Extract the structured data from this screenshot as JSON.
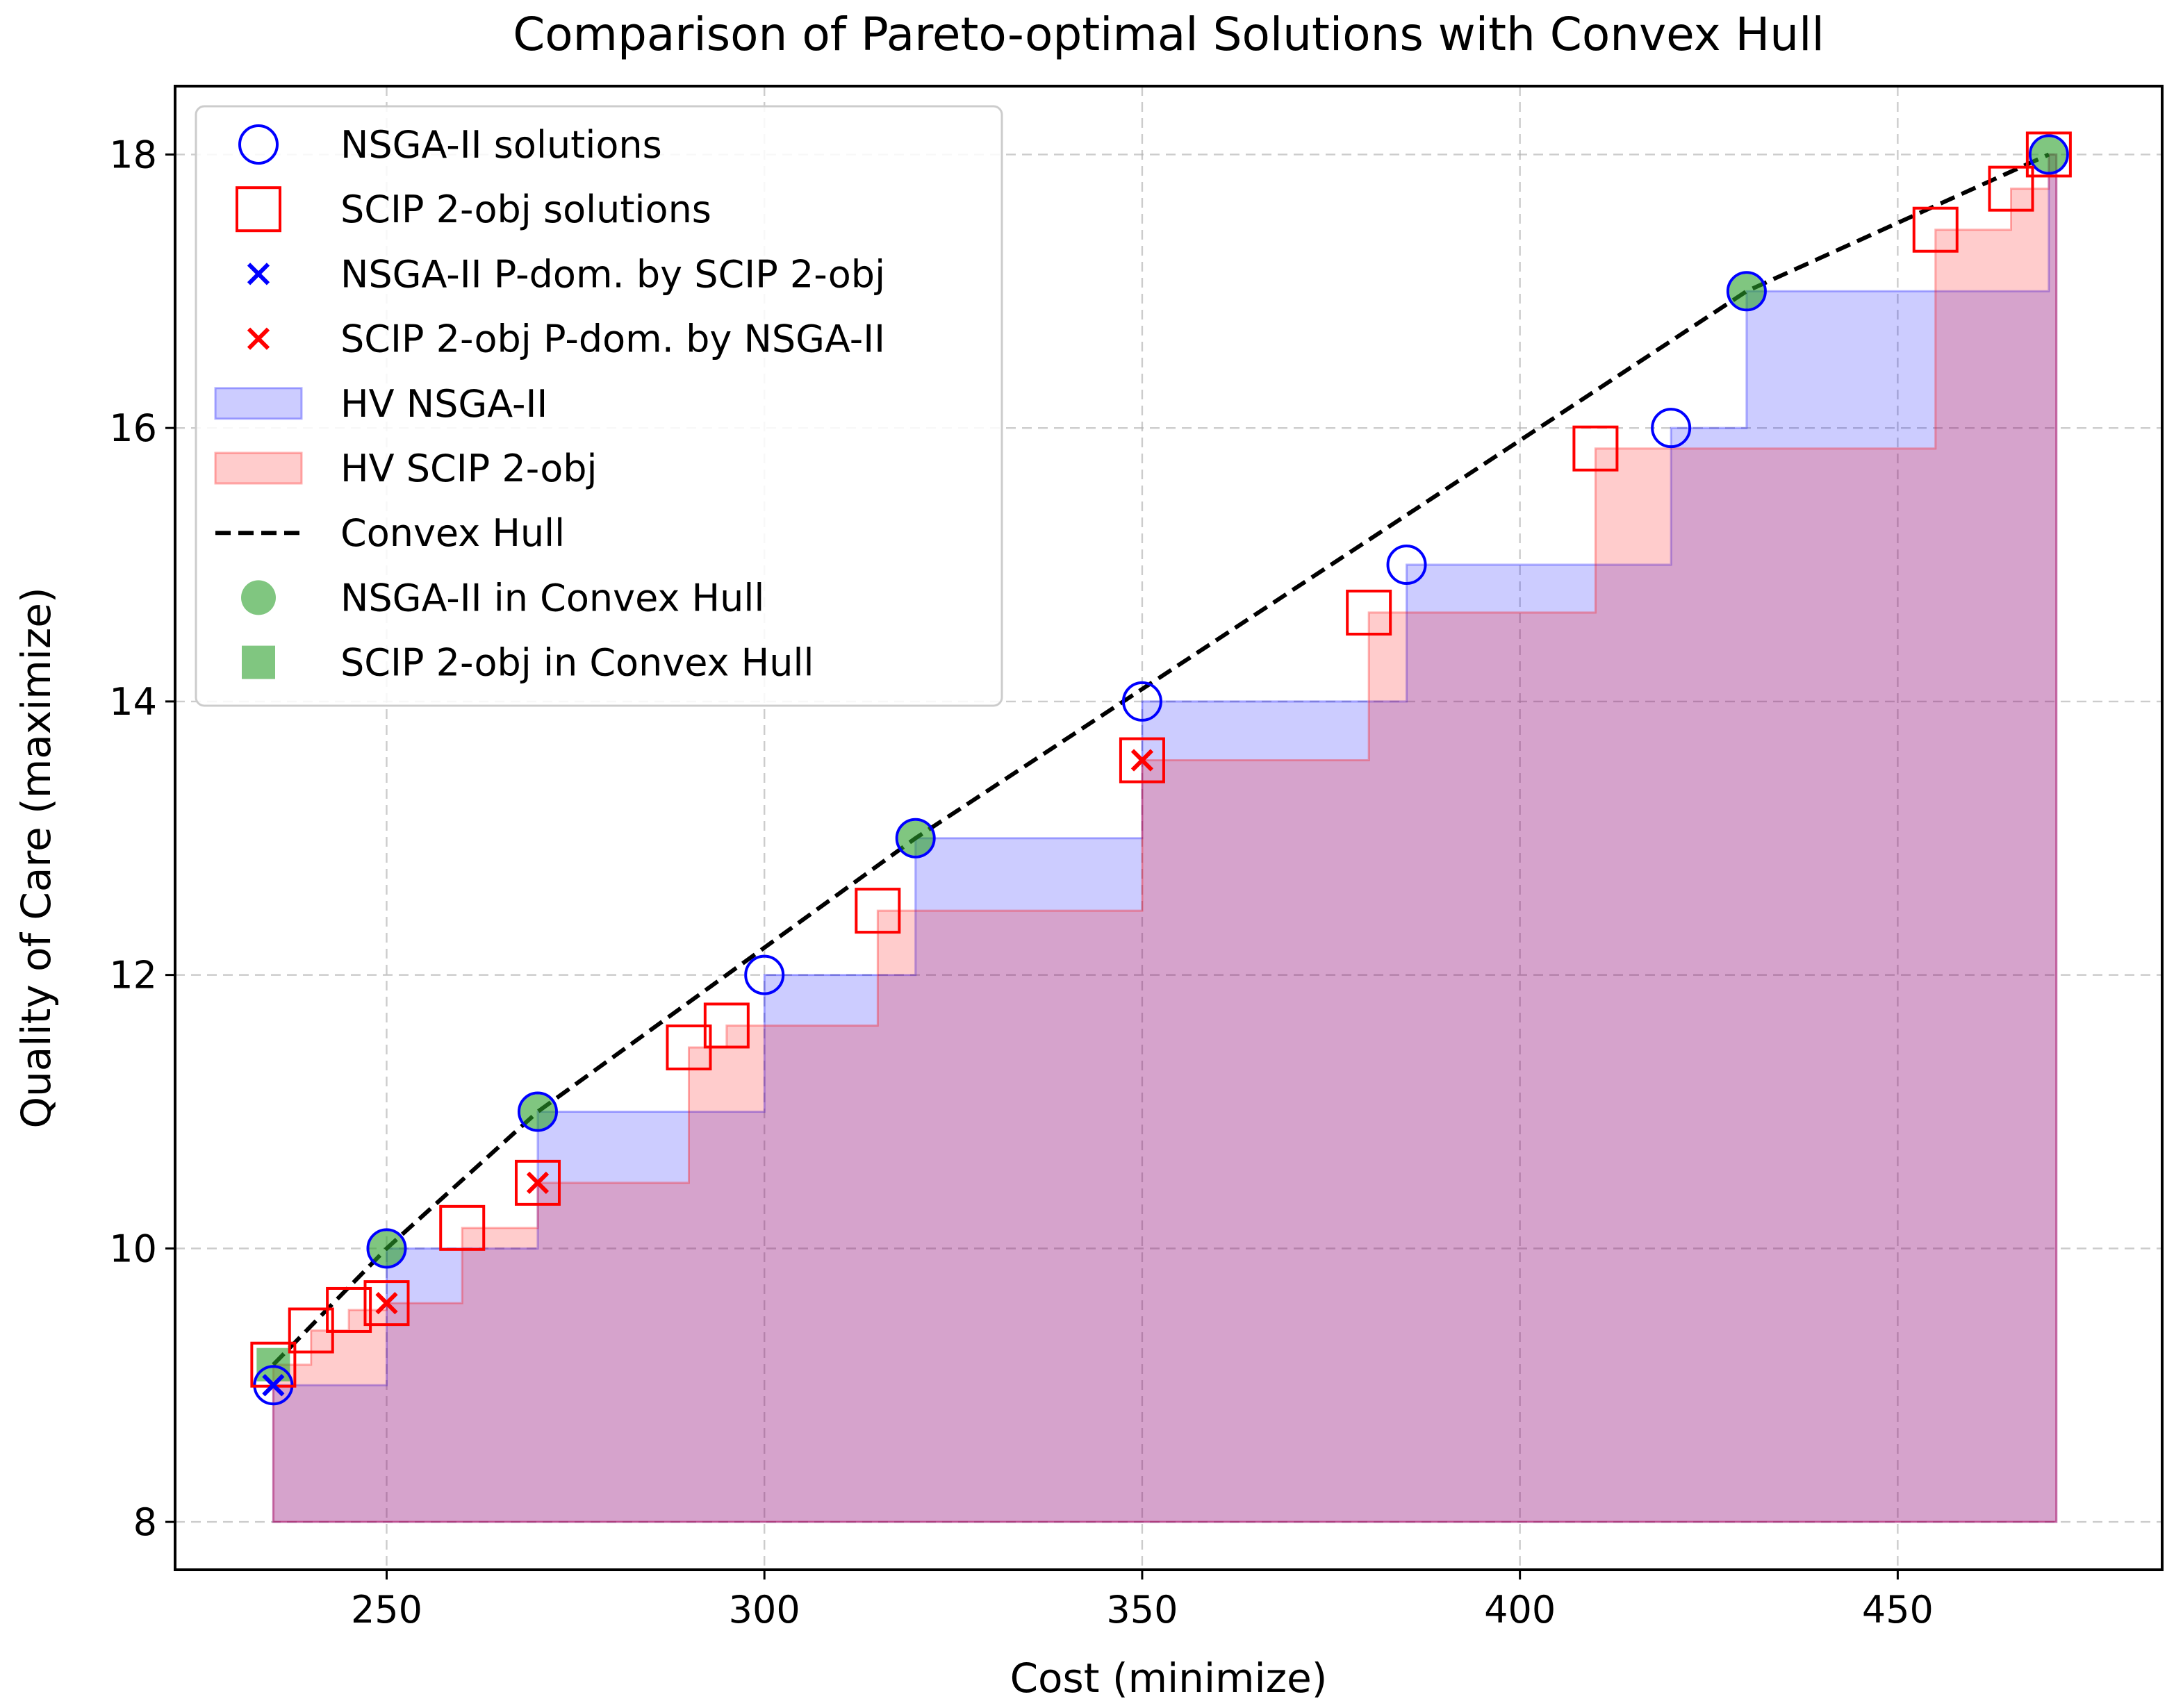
{
  "chart_data": {
    "type": "scatter",
    "title": "Comparison of Pareto-optimal Solutions with Convex Hull",
    "xlabel": "Cost (minimize)",
    "ylabel": "Quality of Care (maximize)",
    "xlim": [
      222,
      485
    ],
    "ylim": [
      7.65,
      18.5
    ],
    "xticks": [
      250,
      300,
      350,
      400,
      450
    ],
    "yticks": [
      8,
      10,
      12,
      14,
      16,
      18
    ],
    "grid": true,
    "legend_position": "upper-left",
    "reference_point": [
      471,
      8
    ],
    "colors": {
      "nsga": "#0000ff",
      "scip": "#ff0000",
      "hull": "#000000",
      "in_hull": "#2ca02c",
      "hv_nsga": "#0000ff",
      "hv_scip": "#ff0000",
      "frame": "#000000"
    },
    "nsga2": [
      [
        235,
        9.0
      ],
      [
        250,
        10.0
      ],
      [
        270,
        11.0
      ],
      [
        300,
        12.0
      ],
      [
        320,
        13.0
      ],
      [
        350,
        14.0
      ],
      [
        385,
        15.0
      ],
      [
        420,
        16.0
      ],
      [
        430,
        17.0
      ],
      [
        470,
        18.0
      ]
    ],
    "scip": [
      [
        235,
        9.15
      ],
      [
        240,
        9.4
      ],
      [
        245,
        9.55
      ],
      [
        250,
        9.6
      ],
      [
        260,
        10.15
      ],
      [
        270,
        10.48
      ],
      [
        290,
        11.47
      ],
      [
        295,
        11.63
      ],
      [
        315,
        12.47
      ],
      [
        350,
        13.57
      ],
      [
        380,
        14.65
      ],
      [
        410,
        15.85
      ],
      [
        455,
        17.45
      ],
      [
        465,
        17.75
      ],
      [
        470,
        18.0
      ]
    ],
    "nsga_dominated": [
      [
        235,
        9.0
      ]
    ],
    "scip_dominated": [
      [
        250,
        9.6
      ],
      [
        270,
        10.48
      ],
      [
        350,
        13.57
      ]
    ],
    "convex_hull": [
      [
        235,
        9.15
      ],
      [
        250,
        10.0
      ],
      [
        270,
        11.0
      ],
      [
        320,
        13.0
      ],
      [
        430,
        17.0
      ],
      [
        470,
        18.0
      ]
    ],
    "nsga_in_hull": [
      [
        250,
        10.0
      ],
      [
        270,
        11.0
      ],
      [
        320,
        13.0
      ],
      [
        430,
        17.0
      ],
      [
        470,
        18.0
      ]
    ],
    "scip_in_hull": [
      [
        235,
        9.15
      ]
    ],
    "legend": [
      {
        "key": "nsga",
        "label": "NSGA-II solutions",
        "icon": "blue-hollow-circle-icon"
      },
      {
        "key": "scip",
        "label": "SCIP 2-obj solutions",
        "icon": "red-hollow-square-icon"
      },
      {
        "key": "nsga_dom",
        "label": "NSGA-II P-dom. by SCIP 2-obj",
        "icon": "blue-x-icon"
      },
      {
        "key": "scip_dom",
        "label": "SCIP 2-obj P-dom. by NSGA-II",
        "icon": "red-x-icon"
      },
      {
        "key": "hv_nsga",
        "label": "HV NSGA-II",
        "icon": "blue-patch-icon"
      },
      {
        "key": "hv_scip",
        "label": "HV SCIP 2-obj",
        "icon": "red-patch-icon"
      },
      {
        "key": "hull",
        "label": "Convex Hull",
        "icon": "dashed-line-icon"
      },
      {
        "key": "nsga_hull",
        "label": "NSGA-II in Convex Hull",
        "icon": "green-circle-icon"
      },
      {
        "key": "scip_hull",
        "label": "SCIP 2-obj in Convex Hull",
        "icon": "green-square-icon"
      }
    ]
  }
}
